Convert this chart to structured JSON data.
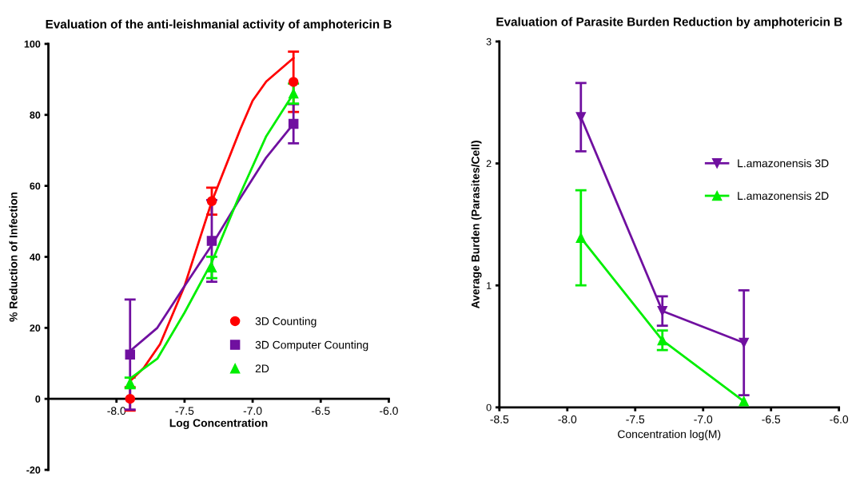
{
  "chart_data": [
    {
      "type": "scatter",
      "title": "Evaluation of the anti-leishmanial activity of amphotericin B",
      "xlabel": "Log Concentration",
      "ylabel": "% Reduction of Infection",
      "xlim": [
        -8.5,
        -6.0
      ],
      "ylim": [
        -20,
        100
      ],
      "xticks": [
        {
          "value": -8.0,
          "label": "-8.0"
        },
        {
          "value": -7.5,
          "label": "-7.5"
        },
        {
          "value": -7.0,
          "label": "-7.0"
        },
        {
          "value": -6.5,
          "label": "-6.5"
        },
        {
          "value": -6.0,
          "label": "-6.0"
        }
      ],
      "yticks": [
        -20,
        0,
        20,
        40,
        60,
        80,
        100
      ],
      "legend": "bottom right",
      "grid": false,
      "series": [
        {
          "type": "line",
          "color": "#ff0000",
          "marker": "none",
          "x": [
            -7.9,
            -7.8,
            -7.68,
            -7.5,
            -7.3,
            -7.09,
            -7.0,
            -6.9,
            -6.7
          ],
          "values": [
            5,
            8.7,
            15.4,
            31.8,
            55.6,
            76,
            84,
            89.4,
            96
          ]
        },
        {
          "type": "line",
          "color": "#7010a0",
          "marker": "none",
          "x": [
            -7.9,
            -7.7,
            -7.5,
            -7.3,
            -7.1,
            -6.9,
            -6.7
          ],
          "values": [
            13.5,
            20,
            31.8,
            43.3,
            56,
            68,
            77.5
          ]
        },
        {
          "type": "line",
          "color": "#00ee00",
          "marker": "none",
          "x": [
            -7.9,
            -7.7,
            -7.5,
            -7.3,
            -7.1,
            -6.9,
            -6.7
          ],
          "values": [
            5.7,
            11.3,
            24.3,
            38.5,
            57,
            74,
            86
          ]
        },
        {
          "type": "scatter",
          "name": "3D Counting",
          "color": "#ff0000",
          "marker": "circle",
          "x": [
            -7.9,
            -7.3,
            -6.7
          ],
          "values": [
            0,
            55.7,
            89.3
          ],
          "errors": [
            3.3,
            3.8,
            8.5
          ]
        },
        {
          "type": "scatter",
          "name": "3D Computer Counting",
          "color": "#7010a0",
          "marker": "square",
          "x": [
            -7.9,
            -7.3,
            -6.7
          ],
          "values": [
            12.5,
            44.5,
            77.5
          ],
          "errors": [
            15.5,
            11.5,
            5.5
          ]
        },
        {
          "type": "scatter",
          "name": "2D",
          "color": "#00ee00",
          "marker": "triangle",
          "x": [
            -7.9,
            -7.3,
            -6.7
          ],
          "values": [
            4.5,
            37,
            86
          ],
          "errors": [
            1.5,
            3,
            2.8
          ]
        }
      ]
    },
    {
      "type": "line",
      "title": "Evaluation of Parasite Burden Reduction by amphotericin B",
      "xlabel": "Concentration log(M)",
      "ylabel": "Average Burden (Parasites/Cell)",
      "xlim": [
        -8.5,
        -6.0
      ],
      "ylim": [
        0,
        3
      ],
      "xticks": [
        {
          "value": -8.5,
          "label": "-8.5"
        },
        {
          "value": -8.0,
          "label": "-8.0"
        },
        {
          "value": -7.5,
          "label": "-7.5"
        },
        {
          "value": -7.0,
          "label": "-7.0"
        },
        {
          "value": -6.5,
          "label": "-6.5"
        },
        {
          "value": -6.0,
          "label": "-6.0"
        }
      ],
      "yticks": [
        0,
        1,
        2,
        3
      ],
      "legend": "right",
      "grid": false,
      "series": [
        {
          "name": "L.amazonensis 3D",
          "color": "#7010a0",
          "marker": "triangle_down",
          "x": [
            -7.9,
            -7.3,
            -6.7
          ],
          "values": [
            2.38,
            0.79,
            0.53
          ],
          "errors": [
            0.28,
            0.12,
            0.43
          ]
        },
        {
          "name": "L.amazonensis 2D",
          "color": "#00ee00",
          "marker": "triangle",
          "x": [
            -7.9,
            -7.3,
            -6.7
          ],
          "values": [
            1.39,
            0.55,
            0.05
          ],
          "errors": [
            0.39,
            0.08,
            null
          ]
        }
      ]
    }
  ]
}
